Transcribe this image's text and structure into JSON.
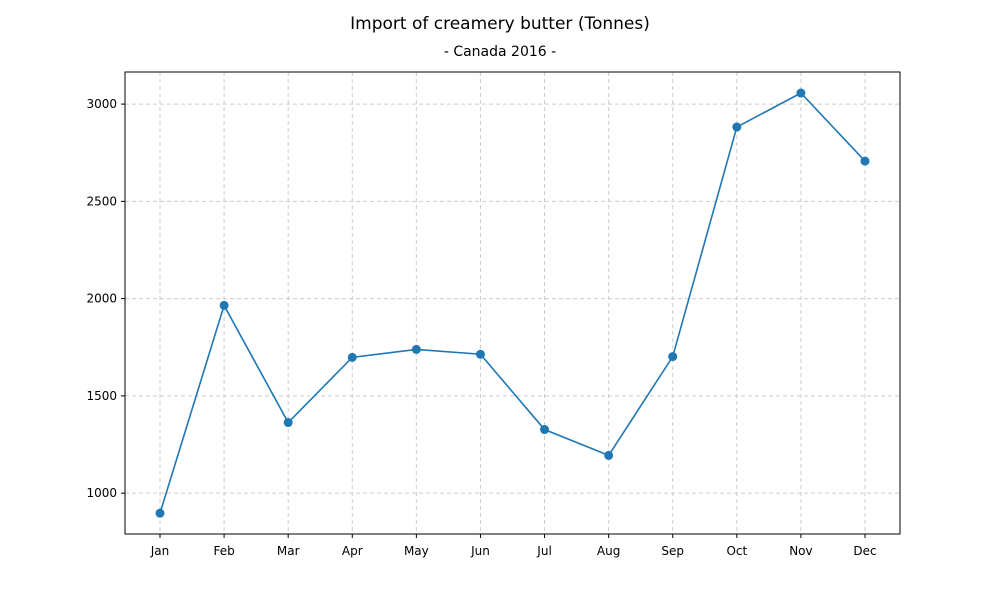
{
  "chart_data": {
    "type": "line",
    "title": "Import of creamery butter (Tonnes)",
    "subtitle": "- Canada 2016 -",
    "xlabel": "",
    "ylabel": "",
    "categories": [
      "Jan",
      "Feb",
      "Mar",
      "Apr",
      "May",
      "Jun",
      "Jul",
      "Aug",
      "Sep",
      "Oct",
      "Nov",
      "Dec"
    ],
    "series": [
      {
        "values": [
          897,
          1965,
          1363,
          1698,
          1739,
          1714,
          1327,
          1194,
          1702,
          2882,
          3057,
          2707
        ],
        "color": "#1f77b4"
      }
    ],
    "ylim": [
      790,
      3165
    ],
    "yticks": [
      1000,
      1500,
      2000,
      2500,
      3000
    ],
    "grid": true,
    "legend": "none"
  }
}
